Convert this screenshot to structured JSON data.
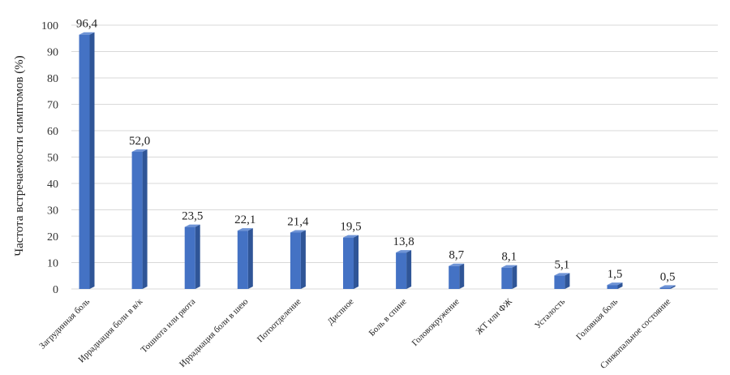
{
  "chart_data": {
    "type": "bar",
    "title": "",
    "xlabel": "",
    "ylabel": "Частота встречаемости симптомов (%)",
    "ylim": [
      0,
      100
    ],
    "yticks": [
      "0",
      "10",
      "20",
      "30",
      "40",
      "50",
      "60",
      "70",
      "80",
      "90",
      "100"
    ],
    "grid": true,
    "categories": [
      "Загрудинная боль",
      "Иррадиация боли в в/к",
      "Тошнота или рвота",
      "Иррадиация боли в шею",
      "Потоотделение",
      "Диспное",
      "Боль в спине",
      "Головокружение",
      "ЖТ или ФЖ",
      "Усталость",
      "Головная боль",
      "Синкопальное состояние"
    ],
    "values": [
      96.4,
      52.0,
      23.5,
      22.1,
      21.4,
      19.5,
      13.8,
      8.7,
      8.1,
      5.1,
      1.5,
      0.5
    ],
    "data_labels": [
      "96,4",
      "52,0",
      "23,5",
      "22,1",
      "21,4",
      "19,5",
      "13,8",
      "8,7",
      "8,1",
      "5,1",
      "1,5",
      "0,5"
    ],
    "colors": {
      "bar_front": "#4472c4",
      "bar_side": "#2f5597",
      "bar_top": "#6f94d6",
      "grid": "#d9d9d9"
    }
  }
}
